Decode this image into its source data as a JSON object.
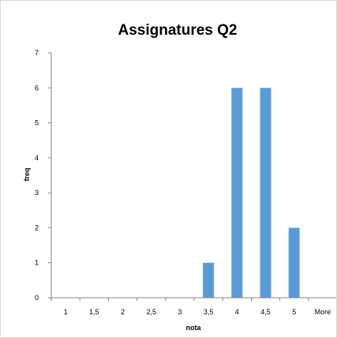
{
  "chart_data": {
    "type": "bar",
    "title": "Assignatures Q2",
    "xlabel": "nota",
    "ylabel": "freq",
    "categories": [
      "1",
      "1,5",
      "2",
      "2,5",
      "3",
      "3,5",
      "4",
      "4,5",
      "5",
      "More"
    ],
    "values": [
      0,
      0,
      0,
      0,
      0,
      1,
      6,
      6,
      2,
      0
    ],
    "ylim": [
      0,
      7
    ],
    "yticks": [
      "0",
      "1",
      "2",
      "3",
      "4",
      "5",
      "6",
      "7"
    ],
    "grid": false,
    "legend": "none",
    "bar_color": "#5b9bd5",
    "axis_color": "#868686"
  }
}
